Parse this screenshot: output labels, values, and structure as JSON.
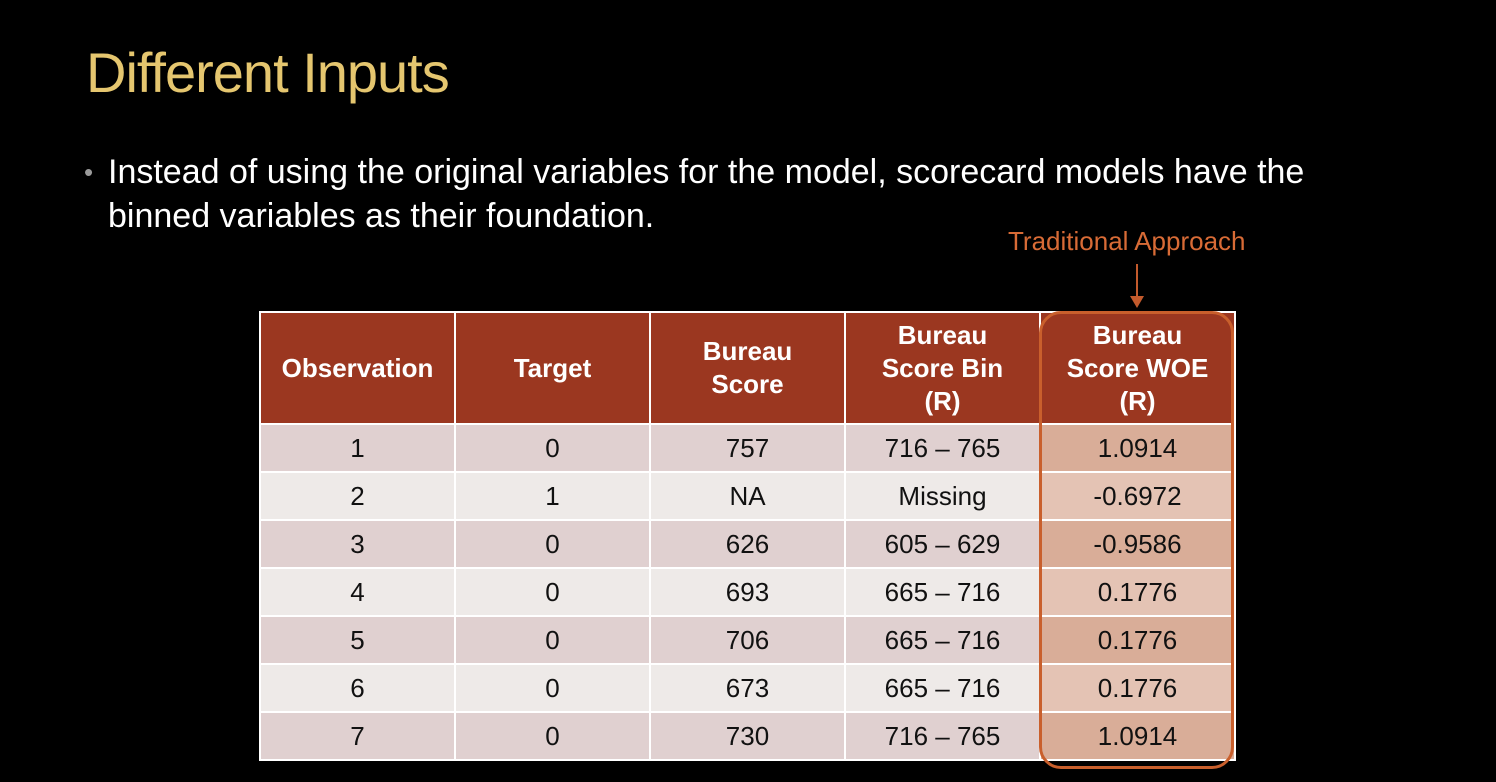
{
  "slide": {
    "title": "Different Inputs",
    "bullet_text": "Instead of using the original variables for the model, scorecard models have the binned variables as their foundation.",
    "callout_label": "Traditional Approach"
  },
  "table": {
    "headers": {
      "observation": "Observation",
      "target": "Target",
      "bureau_score_line1": "Bureau",
      "bureau_score_line2": "Score",
      "score_bin_line1": "Bureau",
      "score_bin_line2": "Score Bin",
      "score_bin_line3": "(R)",
      "woe_line1": "Bureau",
      "woe_line2": "Score WOE",
      "woe_line3": "(R)"
    },
    "rows": [
      {
        "observation": "1",
        "target": "0",
        "bureau_score": "757",
        "score_bin": "716 – 765",
        "woe": "1.0914"
      },
      {
        "observation": "2",
        "target": "1",
        "bureau_score": "NA",
        "score_bin": "Missing",
        "woe": "-0.6972"
      },
      {
        "observation": "3",
        "target": "0",
        "bureau_score": "626",
        "score_bin": "605 – 629",
        "woe": "-0.9586"
      },
      {
        "observation": "4",
        "target": "0",
        "bureau_score": "693",
        "score_bin": "665 – 716",
        "woe": "0.1776"
      },
      {
        "observation": "5",
        "target": "0",
        "bureau_score": "706",
        "score_bin": "665 – 716",
        "woe": "0.1776"
      },
      {
        "observation": "6",
        "target": "0",
        "bureau_score": "673",
        "score_bin": "665 – 716",
        "woe": "0.1776"
      },
      {
        "observation": "7",
        "target": "0",
        "bureau_score": "730",
        "score_bin": "716 – 765",
        "woe": "1.0914"
      }
    ]
  },
  "colors": {
    "title": "#e5c66f",
    "header_bg": "#9b3720",
    "callout": "#d86b36",
    "row_odd": "#e0d0d0",
    "row_even": "#eeeae8"
  }
}
